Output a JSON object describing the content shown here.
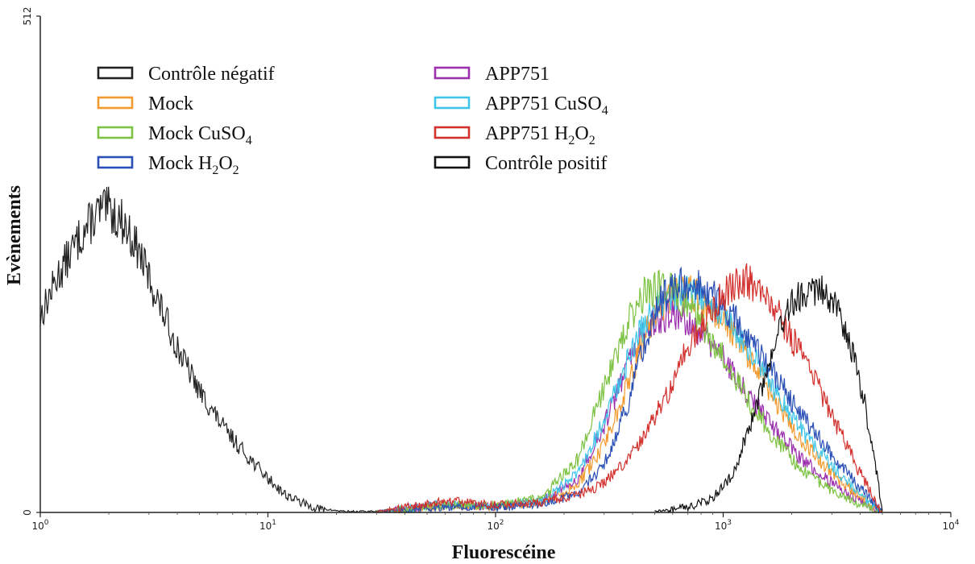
{
  "chart_data": {
    "type": "line",
    "subtype": "flow-cytometry-histogram",
    "xlabel": "Fluorescéine",
    "ylabel": "Evènements",
    "x_scale": "log",
    "xlim": [
      1,
      10000
    ],
    "ylim": [
      0,
      512
    ],
    "x_ticks": [
      {
        "value": 1,
        "base": "10",
        "exp": "0"
      },
      {
        "value": 10,
        "base": "10",
        "exp": "1"
      },
      {
        "value": 100,
        "base": "10",
        "exp": "2"
      },
      {
        "value": 1000,
        "base": "10",
        "exp": "3"
      },
      {
        "value": 10000,
        "base": "10",
        "exp": "4"
      }
    ],
    "y_ticks": [
      {
        "value": 0,
        "label": "0"
      },
      {
        "value": 512,
        "label": "512"
      }
    ],
    "grid": false,
    "legend_position": "top-left",
    "series": [
      {
        "key": "neg",
        "label": "Contrôle négatif",
        "sub": "",
        "color": "#222222",
        "x": [
          1,
          1.2,
          1.5,
          1.8,
          2,
          2.3,
          2.7,
          3.2,
          4,
          5,
          6.5,
          8,
          10,
          12,
          15,
          18,
          22,
          30,
          40
        ],
        "y": [
          202,
          245,
          285,
          310,
          312,
          300,
          270,
          225,
          170,
          125,
          85,
          60,
          35,
          18,
          7,
          2,
          0,
          0,
          0
        ]
      },
      {
        "key": "app751",
        "label": "APP751",
        "sub": "",
        "color": "#9b2fae",
        "x": [
          30,
          60,
          100,
          160,
          230,
          300,
          380,
          450,
          520,
          600,
          700,
          800,
          1000,
          1300,
          1700,
          2200,
          3000,
          4000,
          5000
        ],
        "y": [
          0,
          8,
          6,
          12,
          35,
          90,
          150,
          185,
          200,
          205,
          198,
          185,
          160,
          120,
          85,
          55,
          30,
          12,
          0
        ]
      },
      {
        "key": "mock",
        "label": "Mock",
        "sub": "",
        "color": "#f29a2e",
        "x": [
          30,
          60,
          100,
          160,
          230,
          300,
          380,
          450,
          520,
          600,
          700,
          800,
          1000,
          1300,
          1700,
          2200,
          3000,
          4000,
          5000
        ],
        "y": [
          0,
          7,
          6,
          10,
          28,
          70,
          130,
          180,
          210,
          225,
          228,
          220,
          200,
          160,
          115,
          75,
          40,
          15,
          0
        ]
      },
      {
        "key": "app751_cuso4",
        "label": "APP751 CuSO",
        "sub": "4",
        "color": "#3ec5e8",
        "x": [
          30,
          60,
          100,
          160,
          230,
          300,
          380,
          450,
          520,
          600,
          700,
          800,
          1000,
          1300,
          1700,
          2200,
          3000,
          4000,
          5000
        ],
        "y": [
          0,
          9,
          6,
          12,
          40,
          95,
          155,
          195,
          215,
          225,
          228,
          222,
          205,
          170,
          125,
          85,
          48,
          18,
          0
        ]
      },
      {
        "key": "mock_cuso4",
        "label": "Mock CuSO",
        "sub": "4",
        "color": "#7dc242",
        "x": [
          30,
          60,
          100,
          160,
          230,
          300,
          380,
          450,
          520,
          600,
          700,
          800,
          1000,
          1300,
          1700,
          2200,
          3000,
          4000,
          5000
        ],
        "y": [
          0,
          8,
          7,
          15,
          55,
          130,
          195,
          225,
          232,
          228,
          215,
          195,
          160,
          115,
          75,
          45,
          22,
          8,
          0
        ]
      },
      {
        "key": "mock_h2o2",
        "label": "Mock H",
        "sub": "2",
        "label2": "O",
        "sub2": "2",
        "color": "#2a4fb5",
        "x": [
          30,
          60,
          100,
          160,
          230,
          300,
          380,
          450,
          520,
          600,
          700,
          800,
          1000,
          1300,
          1700,
          2200,
          3000,
          4000,
          5000
        ],
        "y": [
          0,
          6,
          5,
          8,
          20,
          50,
          110,
          175,
          215,
          232,
          238,
          232,
          215,
          180,
          140,
          100,
          60,
          25,
          0
        ]
      },
      {
        "key": "app751_h2o2",
        "label": "APP751 H",
        "sub": "2",
        "label2": "O",
        "sub2": "2",
        "color": "#d2312d",
        "x": [
          30,
          60,
          100,
          160,
          230,
          300,
          400,
          550,
          700,
          850,
          1000,
          1200,
          1400,
          1700,
          2000,
          2500,
          3000,
          4000,
          5000
        ],
        "y": [
          0,
          12,
          8,
          10,
          18,
          30,
          60,
          115,
          170,
          200,
          225,
          240,
          235,
          210,
          180,
          140,
          100,
          40,
          0
        ]
      },
      {
        "key": "pos",
        "label": "Contrôle positif",
        "sub": "",
        "color": "#111111",
        "x": [
          500,
          700,
          900,
          1100,
          1300,
          1500,
          1800,
          2100,
          2400,
          2800,
          3200,
          3700,
          4200,
          4700,
          5000
        ],
        "y": [
          0,
          5,
          15,
          40,
          85,
          135,
          190,
          222,
          232,
          228,
          205,
          165,
          110,
          45,
          0
        ]
      }
    ]
  }
}
